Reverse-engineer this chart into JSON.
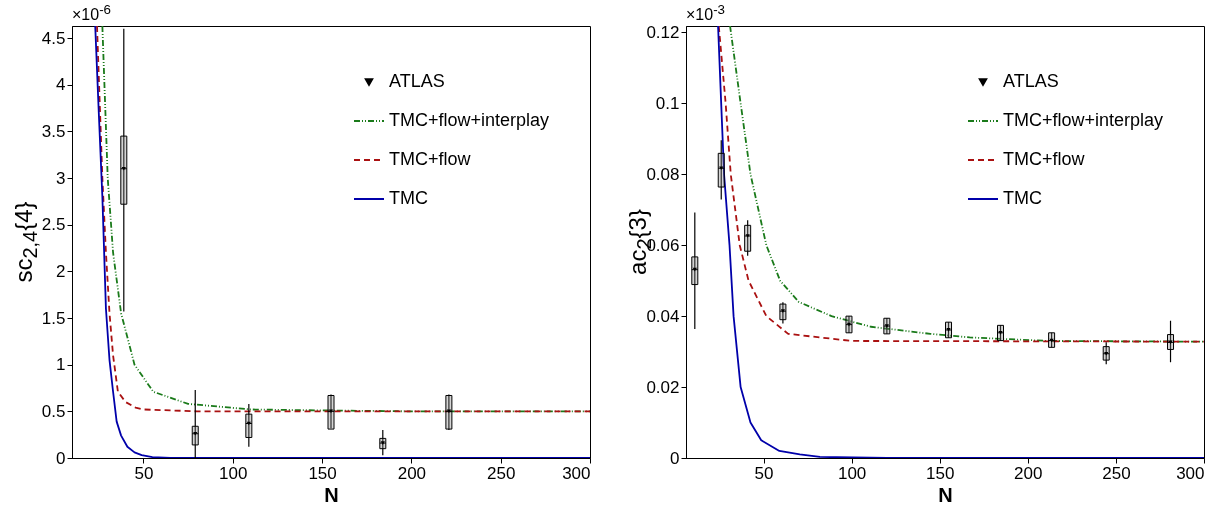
{
  "chart_data": [
    {
      "type": "line",
      "xlabel": "N",
      "ylabel": "sc$_{2,4}${4}",
      "annotations": [
        "×10$^{-6}$"
      ],
      "xlim": [
        10,
        300
      ],
      "ylim": [
        0,
        4.63
      ],
      "xticks": [
        50,
        100,
        150,
        200,
        250,
        300
      ],
      "yticks": [
        0,
        0.5,
        1,
        1.5,
        2,
        2.5,
        3,
        3.5,
        4,
        4.5
      ],
      "grid": false,
      "legend": "top right",
      "series": [
        {
          "name": "ATLAS",
          "type": "scatter",
          "marker": "triangle",
          "color": "#000000",
          "x": [
            39,
            79,
            109,
            155,
            184,
            221
          ],
          "values": [
            3.1,
            0.26,
            0.37,
            0.5,
            0.16,
            0.5
          ],
          "errors": [
            [
              1.57,
              4.6
            ],
            [
              0,
              0.73
            ],
            [
              0.12,
              0.58
            ],
            [
              0.32,
              0.68
            ],
            [
              0.03,
              0.3
            ],
            [
              0.3,
              0.68
            ]
          ]
        },
        {
          "type": "box",
          "color": "#000000",
          "x": [
            39,
            79,
            109,
            155,
            184,
            221
          ],
          "boxes": [
            {
              "q1": 2.72,
              "median": 3.1,
              "q3": 3.45
            },
            {
              "q1": 0.14,
              "median": 0.26,
              "q3": 0.34
            },
            {
              "q1": 0.22,
              "median": 0.37,
              "q3": 0.47
            },
            {
              "q1": 0.31,
              "median": 0.5,
              "q3": 0.67
            },
            {
              "q1": 0.1,
              "median": 0.16,
              "q3": 0.21
            },
            {
              "q1": 0.31,
              "median": 0.5,
              "q3": 0.67
            }
          ]
        },
        {
          "name": "TMC+flow+interplay",
          "line_style": "dotted",
          "color": "#1a7a1a",
          "x": [
            27,
            30,
            33,
            37.5,
            45,
            55.5,
            75,
            110,
            150,
            200,
            300
          ],
          "values": [
            4.63,
            3.0,
            2.2,
            1.55,
            1.0,
            0.71,
            0.58,
            0.52,
            0.51,
            0.5,
            0.5
          ]
        },
        {
          "name": "TMC+flow",
          "line_style": "dashed",
          "color": "#aa1111",
          "x": [
            24,
            27,
            29,
            31,
            33,
            35.7,
            40,
            45.6,
            50,
            80,
            300
          ],
          "values": [
            4.63,
            3.0,
            2.2,
            1.55,
            1.1,
            0.71,
            0.6,
            0.54,
            0.52,
            0.5,
            0.5
          ]
        },
        {
          "name": "TMC",
          "line_style": "solid",
          "color": "#0000aa",
          "x": [
            23,
            25,
            27,
            29,
            31,
            33,
            35,
            37.5,
            41,
            45,
            49,
            55,
            65,
            300
          ],
          "values": [
            4.63,
            3.7,
            2.8,
            1.6,
            1.05,
            0.71,
            0.39,
            0.24,
            0.12,
            0.06,
            0.03,
            0.01,
            0,
            0
          ]
        }
      ]
    },
    {
      "type": "line",
      "xlabel": "N",
      "ylabel": "ac$_{2}${3}",
      "annotations": [
        "×10$^{-3}$"
      ],
      "xlim": [
        6,
        300
      ],
      "ylim": [
        0,
        0.1218
      ],
      "xticks": [
        50,
        100,
        150,
        200,
        250,
        300
      ],
      "yticks": [
        0,
        0.02,
        0.04,
        0.06,
        0.08,
        0.1,
        0.12
      ],
      "grid": false,
      "legend": "top right",
      "series": [
        {
          "name": "ATLAS",
          "type": "scatter",
          "marker": "triangle",
          "color": "#000000",
          "x": [
            11,
            26,
            41,
            61,
            98.5,
            120,
            155,
            184.5,
            213.5,
            244.5,
            281
          ],
          "values": [
            0.0531,
            0.0817,
            0.0626,
            0.0414,
            0.0376,
            0.0372,
            0.0361,
            0.0353,
            0.0331,
            0.0294,
            0.0326
          ],
          "errors": [
            [
              0.0364,
              0.0692
            ],
            [
              0.0729,
              0.0896
            ],
            [
              0.057,
              0.067
            ],
            [
              0.0379,
              0.0439
            ],
            [
              0.0353,
              0.04
            ],
            [
              0.035,
              0.0394
            ],
            [
              0.0339,
              0.0383
            ],
            [
              0.0331,
              0.0374
            ],
            [
              0.0312,
              0.0353
            ],
            [
              0.0264,
              0.0326
            ],
            [
              0.027,
              0.0387
            ]
          ]
        },
        {
          "type": "box",
          "color": "#000000",
          "x": [
            11,
            26,
            41,
            61,
            98.5,
            120,
            155,
            184.5,
            213.5,
            244.5,
            281
          ],
          "boxes": [
            {
              "q1": 0.0489,
              "median": 0.0531,
              "q3": 0.0567
            },
            {
              "q1": 0.0764,
              "median": 0.0817,
              "q3": 0.0859
            },
            {
              "q1": 0.0583,
              "median": 0.0626,
              "q3": 0.0656
            },
            {
              "q1": 0.039,
              "median": 0.0414,
              "q3": 0.0434
            },
            {
              "q1": 0.0353,
              "median": 0.0376,
              "q3": 0.04
            },
            {
              "q1": 0.035,
              "median": 0.0372,
              "q3": 0.0394
            },
            {
              "q1": 0.0339,
              "median": 0.0361,
              "q3": 0.0383
            },
            {
              "q1": 0.0331,
              "median": 0.0353,
              "q3": 0.0374
            },
            {
              "q1": 0.0312,
              "median": 0.0331,
              "q3": 0.0353
            },
            {
              "q1": 0.0276,
              "median": 0.0294,
              "q3": 0.0314
            },
            {
              "q1": 0.0306,
              "median": 0.0326,
              "q3": 0.0348
            }
          ]
        },
        {
          "name": "TMC+flow+interplay",
          "line_style": "dotted",
          "color": "#1a7a1a",
          "x": [
            31,
            37,
            42.6,
            51.6,
            59.4,
            70,
            88.6,
            111,
            144.7,
            167,
            212,
            300
          ],
          "values": [
            0.1218,
            0.1,
            0.08,
            0.06,
            0.05,
            0.044,
            0.04,
            0.037,
            0.035,
            0.034,
            0.033,
            0.0328
          ]
        },
        {
          "name": "TMC+flow",
          "line_style": "dashed",
          "color": "#aa1111",
          "x": [
            24.6,
            28.5,
            31.4,
            36.5,
            41.5,
            51.6,
            64,
            100,
            300
          ],
          "values": [
            0.1218,
            0.1,
            0.08,
            0.06,
            0.05,
            0.04,
            0.035,
            0.033,
            0.0328
          ]
        },
        {
          "name": "TMC",
          "line_style": "solid",
          "color": "#0000aa",
          "x": [
            24.2,
            27.6,
            30.7,
            33,
            37,
            42.6,
            48.7,
            59,
            70.6,
            82,
            120,
            300
          ],
          "values": [
            0.1218,
            0.08,
            0.06,
            0.04,
            0.02,
            0.01,
            0.005,
            0.002,
            0.001,
            0.0003,
            0,
            0
          ]
        }
      ]
    }
  ]
}
